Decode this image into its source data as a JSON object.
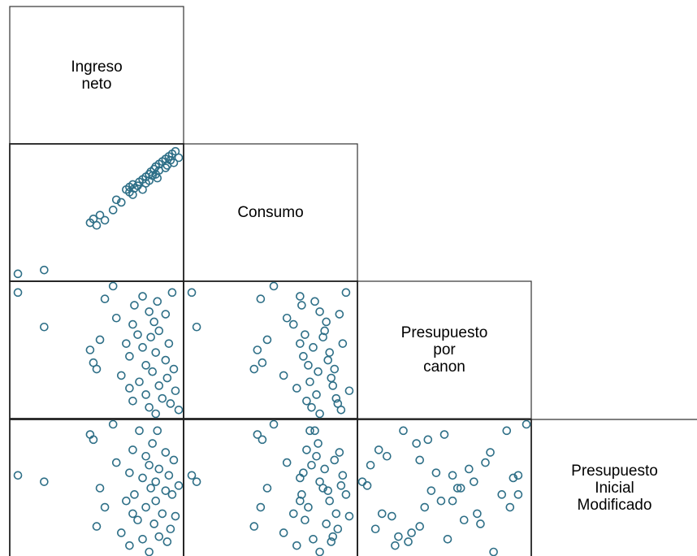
{
  "chart_data": {
    "type": "scatter_matrix",
    "color": "#2e6f87",
    "variables": [
      {
        "name": "Ingreso\nneto",
        "values": [
          2,
          18,
          46,
          48,
          50,
          52,
          55,
          60,
          62,
          65,
          68,
          70,
          70,
          72,
          72,
          73,
          75,
          76,
          78,
          78,
          80,
          80,
          82,
          82,
          83,
          84,
          85,
          86,
          86,
          87,
          88,
          88,
          90,
          92,
          92,
          93,
          94,
          95,
          96,
          97,
          98,
          100
        ]
      },
      {
        "name": "Consumo",
        "values": [
          2,
          5,
          42,
          45,
          40,
          48,
          44,
          52,
          60,
          58,
          68,
          66,
          70,
          64,
          72,
          69,
          71,
          74,
          76,
          68,
          78,
          73,
          80,
          75,
          82,
          79,
          84,
          80,
          86,
          77,
          88,
          83,
          90,
          85,
          92,
          87,
          94,
          91,
          96,
          89,
          98,
          93
        ]
      },
      {
        "name": "Presupuesto\npor\ncanon",
        "values": [
          95,
          68,
          50,
          40,
          35,
          58,
          90,
          100,
          75,
          30,
          55,
          20,
          45,
          70,
          10,
          85,
          62,
          25,
          52,
          92,
          15,
          38,
          80,
          5,
          60,
          33,
          72,
          0,
          48,
          88,
          22,
          65,
          12,
          42,
          78,
          28,
          55,
          8,
          95,
          35,
          18,
          3
        ]
      },
      {
        "name": "Presupuesto\nInicial\nModificado",
        "values": [
          60,
          55,
          92,
          88,
          20,
          50,
          35,
          100,
          70,
          15,
          40,
          5,
          62,
          30,
          80,
          45,
          25,
          95,
          10,
          58,
          75,
          35,
          0,
          68,
          50,
          85,
          22,
          55,
          40,
          95,
          12,
          65,
          30,
          48,
          78,
          8,
          60,
          18,
          45,
          72,
          28,
          52
        ]
      }
    ]
  }
}
